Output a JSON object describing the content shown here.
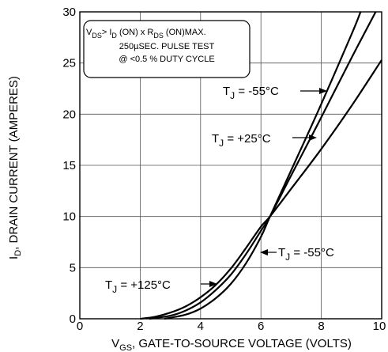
{
  "chart_data": {
    "type": "line",
    "title": "",
    "xlabel": {
      "main": "V",
      "sub": "GS",
      "rest": ", GATE-TO-SOURCE VOLTAGE (VOLTS)"
    },
    "ylabel": {
      "main": "I",
      "sub": "D",
      "rest": ", DRAIN CURRENT (AMPERES)"
    },
    "xlim": [
      0,
      10
    ],
    "ylim": [
      0,
      30
    ],
    "x_ticks": [
      0,
      2,
      4,
      6,
      8,
      10
    ],
    "x_tick_labels": [
      "0",
      "2",
      "4",
      "6",
      "8",
      "10"
    ],
    "y_ticks": [
      0,
      5,
      10,
      15,
      20,
      25,
      30
    ],
    "y_tick_labels": [
      "0",
      "5",
      "10",
      "15",
      "20",
      "25",
      "30"
    ],
    "grid": true,
    "series": [
      {
        "name": "TJ = -55°C",
        "x": [
          2.8,
          3.5,
          4.0,
          4.5,
          5.0,
          5.5,
          6.0,
          6.3,
          7.0,
          8.0,
          9.0,
          9.3
        ],
        "y": [
          0,
          0.4,
          1.0,
          2.0,
          3.4,
          5.4,
          8.0,
          10.0,
          14.5,
          21.0,
          27.8,
          30
        ]
      },
      {
        "name": "TJ = +25°C",
        "x": [
          2.3,
          3.0,
          3.5,
          4.0,
          4.5,
          5.0,
          5.5,
          6.0,
          6.3,
          7.0,
          8.0,
          9.0,
          9.8
        ],
        "y": [
          0,
          0.3,
          0.8,
          1.6,
          2.8,
          4.3,
          6.3,
          8.6,
          10.0,
          14.0,
          19.7,
          25.5,
          30
        ]
      },
      {
        "name": "TJ = +125°C",
        "x": [
          2.0,
          2.5,
          3.0,
          3.5,
          4.0,
          4.5,
          5.0,
          5.5,
          6.0,
          6.3,
          7.0,
          8.0,
          9.0,
          10.0
        ],
        "y": [
          0,
          0.2,
          0.6,
          1.2,
          2.1,
          3.3,
          4.9,
          6.9,
          9.0,
          10.0,
          12.7,
          16.6,
          20.8,
          25.3
        ]
      }
    ],
    "conditions_box": {
      "line1_vds": "V",
      "line1_vds_sub": "DS",
      "line1_gt": "> I",
      "line1_id_sub": "D",
      "line1_mid": " (ON) x  R",
      "line1_rds_sub": "DS",
      "line1_end": " (ON)MAX.",
      "line2": "250µSEC.  PULSE  TEST",
      "line3": "@  <0.5 %  DUTY  CYCLE"
    },
    "annotations": [
      {
        "id": "ann_m55_top",
        "t": "T",
        "sub": "J",
        "rest": " = -55°C"
      },
      {
        "id": "ann_p25",
        "t": "T",
        "sub": "J",
        "rest": " = +25°C"
      },
      {
        "id": "ann_m55_low",
        "t": "T",
        "sub": "J",
        "rest": " = -55°C"
      },
      {
        "id": "ann_p125",
        "t": "T",
        "sub": "J",
        "rest": " = +125°C"
      }
    ]
  }
}
